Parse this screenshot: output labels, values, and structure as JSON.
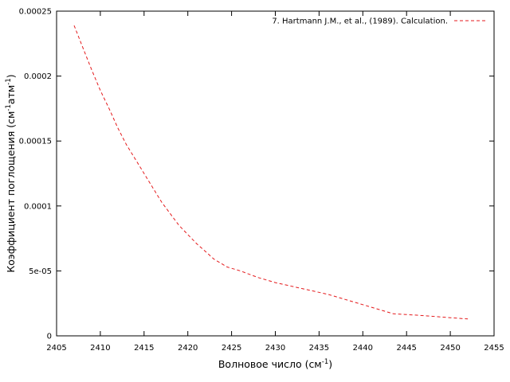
{
  "chart_data": {
    "type": "line",
    "xlabel": {
      "text": "Волновое число (см",
      "sup": "-1",
      "tail": ")"
    },
    "ylabel": {
      "part1": "Коэффициент поглощения (см",
      "sup1": "-1",
      "part2": "атм",
      "sup2": "-1",
      "tail": ")"
    },
    "xlim": [
      2405,
      2455
    ],
    "ylim": [
      0,
      0.00025
    ],
    "x_ticks": [
      {
        "value": 2405,
        "label": "2405"
      },
      {
        "value": 2410,
        "label": "2410"
      },
      {
        "value": 2415,
        "label": "2415"
      },
      {
        "value": 2420,
        "label": "2420"
      },
      {
        "value": 2425,
        "label": "2425"
      },
      {
        "value": 2430,
        "label": "2430"
      },
      {
        "value": 2435,
        "label": "2435"
      },
      {
        "value": 2440,
        "label": "2440"
      },
      {
        "value": 2445,
        "label": "2445"
      },
      {
        "value": 2450,
        "label": "2450"
      },
      {
        "value": 2455,
        "label": "2455"
      }
    ],
    "y_ticks": [
      {
        "value": 0,
        "label": "0"
      },
      {
        "value": 5e-05,
        "label": "5e-05"
      },
      {
        "value": 0.0001,
        "label": "0.0001"
      },
      {
        "value": 0.00015,
        "label": "0.00015"
      },
      {
        "value": 0.0002,
        "label": "0.0002"
      },
      {
        "value": 0.00025,
        "label": "0.00025"
      }
    ],
    "grid": false,
    "legend_position": "top-right",
    "series": [
      {
        "name": "7. Hartmann J.M., et al., (1989). Calculation.",
        "color": "#e41a1c",
        "line_style": "dashed",
        "x": [
          2407,
          2408,
          2409,
          2410,
          2411,
          2412,
          2413,
          2414,
          2415,
          2416,
          2417,
          2418,
          2419,
          2420,
          2421,
          2422,
          2423,
          2424.5,
          2426,
          2428,
          2430,
          2432,
          2434,
          2436,
          2438,
          2440,
          2442,
          2443.5,
          2446,
          2448,
          2450,
          2452
        ],
        "y": [
          0.000239,
          0.000222,
          0.000205,
          0.000189,
          0.000175,
          0.00016,
          0.000147,
          0.000136,
          0.000125,
          0.000114,
          0.000103,
          9.4e-05,
          8.5e-05,
          7.8e-05,
          7.1e-05,
          6.5e-05,
          5.9e-05,
          5.3e-05,
          5e-05,
          4.5e-05,
          4.1e-05,
          3.8e-05,
          3.5e-05,
          3.2e-05,
          2.8e-05,
          2.4e-05,
          2e-05,
          1.7e-05,
          1.6e-05,
          1.5e-05,
          1.4e-05,
          1.3e-05
        ]
      }
    ]
  }
}
